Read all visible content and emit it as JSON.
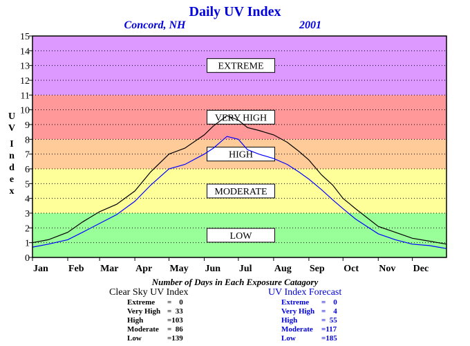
{
  "chart_data": {
    "type": "line",
    "title": "Daily UV Index",
    "subtitle_location": "Concord, NH",
    "subtitle_year": "2001",
    "ylabel": "UV Index",
    "ylim": [
      0,
      15
    ],
    "yticks": [
      "0",
      "1",
      "2",
      "3",
      "4",
      "5",
      "6",
      "7",
      "8",
      "9",
      "10",
      "11",
      "12",
      "13",
      "14",
      "15"
    ],
    "xlim": [
      1,
      365
    ],
    "xticks": [
      {
        "label": "Jan",
        "day": 1
      },
      {
        "label": "Feb",
        "day": 32
      },
      {
        "label": "Mar",
        "day": 60
      },
      {
        "label": "Apr",
        "day": 91
      },
      {
        "label": "May",
        "day": 121
      },
      {
        "label": "Jun",
        "day": 152
      },
      {
        "label": "Jul",
        "day": 182
      },
      {
        "label": "Aug",
        "day": 213
      },
      {
        "label": "Sep",
        "day": 244
      },
      {
        "label": "Oct",
        "day": 274
      },
      {
        "label": "Nov",
        "day": 305
      },
      {
        "label": "Dec",
        "day": 335
      }
    ],
    "grid": true,
    "bands": [
      {
        "label": "LOW",
        "from": 0,
        "to": 3,
        "color": "#99ff99"
      },
      {
        "label": "MODERATE",
        "from": 3,
        "to": 6,
        "color": "#ffff99"
      },
      {
        "label": "HIGH",
        "from": 6,
        "to": 8,
        "color": "#ffcc99"
      },
      {
        "label": "VERY HIGH",
        "from": 8,
        "to": 11,
        "color": "#ff9999"
      },
      {
        "label": "EXTREME",
        "from": 11,
        "to": 15,
        "color": "#dd99ff"
      }
    ],
    "series": [
      {
        "name": "Clear Sky UV Index",
        "color": "#000000",
        "days": [
          1,
          15,
          32,
          45,
          60,
          75,
          91,
          105,
          121,
          135,
          152,
          160,
          172,
          182,
          190,
          200,
          213,
          225,
          235,
          244,
          255,
          265,
          274,
          285,
          295,
          305,
          320,
          335,
          350,
          365
        ],
        "values": [
          1.0,
          1.2,
          1.7,
          2.4,
          3.1,
          3.6,
          4.5,
          5.8,
          7.0,
          7.4,
          8.3,
          8.9,
          9.6,
          9.3,
          8.8,
          8.6,
          8.3,
          7.8,
          7.2,
          6.6,
          5.6,
          4.9,
          4.0,
          3.3,
          2.7,
          2.1,
          1.7,
          1.3,
          1.1,
          0.9
        ]
      },
      {
        "name": "UV Index Forecast",
        "color": "#0000ff",
        "days": [
          1,
          15,
          32,
          45,
          60,
          75,
          91,
          105,
          121,
          135,
          152,
          160,
          172,
          182,
          190,
          200,
          213,
          225,
          235,
          244,
          255,
          265,
          274,
          285,
          295,
          305,
          320,
          335,
          350,
          365
        ],
        "values": [
          0.7,
          0.9,
          1.2,
          1.7,
          2.3,
          2.9,
          3.8,
          4.9,
          6.0,
          6.3,
          7.0,
          7.4,
          8.2,
          8.0,
          7.3,
          7.0,
          6.7,
          6.3,
          5.8,
          5.3,
          4.6,
          3.9,
          3.3,
          2.6,
          2.1,
          1.6,
          1.2,
          0.9,
          0.8,
          0.6
        ]
      }
    ]
  },
  "stats": {
    "heading": "Number of Days in Each Exposure Catagory",
    "clear": {
      "title": "Clear Sky UV Index",
      "rows": [
        {
          "label": "Extreme",
          "value": "=    0"
        },
        {
          "label": "Very High",
          "value": "=  33"
        },
        {
          "label": "High",
          "value": "=103"
        },
        {
          "label": "Moderate",
          "value": "=  86"
        },
        {
          "label": "Low",
          "value": "=139"
        }
      ]
    },
    "forecast": {
      "title": "UV Index Forecast",
      "rows": [
        {
          "label": "Extreme",
          "value": "=    0"
        },
        {
          "label": "Very High",
          "value": "=    4"
        },
        {
          "label": "High",
          "value": "=  55"
        },
        {
          "label": "Moderate",
          "value": "=117"
        },
        {
          "label": "Low",
          "value": "=185"
        }
      ]
    }
  }
}
